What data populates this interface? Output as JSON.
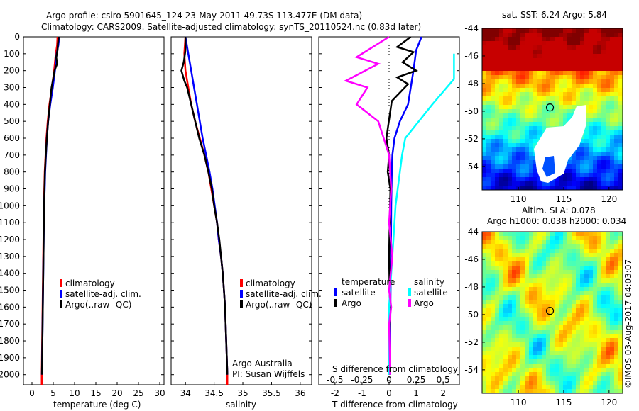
{
  "header": {
    "line1": "Argo profile: csiro 5901645_124 23-May-2011 49.73S 113.477E (DM data)",
    "line2": "Climatology: CARS2009. Satellite-adjusted climatology: synTS_20110524.nc (0.83d later)"
  },
  "colors": {
    "climatology": "#ff0000",
    "satellite": "#0000ff",
    "argo": "#000000",
    "s_satellite": "#00ffff",
    "s_argo": "#ff00ff"
  },
  "credits": {
    "argo_australia": "Argo Australia",
    "pi": "PI: Susan Wijffels",
    "imos": "©IMOS 03-Aug-2017 04:03:07"
  },
  "chart_data": [
    {
      "type": "line",
      "panel": "temperature",
      "xlabel": "temperature (deg C)",
      "x_ticks": [
        "0",
        "5",
        "10",
        "15",
        "20",
        "25",
        "30"
      ],
      "y_ticks": [
        "0",
        "100",
        "200",
        "300",
        "400",
        "500",
        "600",
        "700",
        "800",
        "900",
        "1000",
        "1100",
        "1200",
        "1300",
        "1400",
        "1500",
        "1600",
        "1700",
        "1800",
        "1900",
        "2000"
      ],
      "xlim": [
        -2,
        31
      ],
      "ylim": [
        2060,
        0
      ],
      "legend": [
        "climatology",
        "satellite-adj. clim.",
        "Argo(..raw -QC)"
      ],
      "series": [
        {
          "name": "climatology",
          "color_key": "climatology",
          "points": [
            [
              6.0,
              0
            ],
            [
              5.9,
              50
            ],
            [
              5.6,
              100
            ],
            [
              5.2,
              200
            ],
            [
              4.7,
              300
            ],
            [
              4.1,
              400
            ],
            [
              3.7,
              500
            ],
            [
              3.4,
              600
            ],
            [
              3.2,
              700
            ],
            [
              3.0,
              800
            ],
            [
              2.9,
              900
            ],
            [
              2.8,
              1000
            ],
            [
              2.7,
              1200
            ],
            [
              2.6,
              1400
            ],
            [
              2.5,
              1600
            ],
            [
              2.4,
              1800
            ],
            [
              2.3,
              2000
            ],
            [
              2.3,
              2060
            ]
          ]
        },
        {
          "name": "satellite-adj. clim.",
          "color_key": "satellite",
          "points": [
            [
              6.4,
              0
            ],
            [
              6.2,
              50
            ],
            [
              5.8,
              100
            ],
            [
              5.4,
              200
            ],
            [
              4.9,
              300
            ],
            [
              4.3,
              400
            ],
            [
              3.8,
              500
            ],
            [
              3.5,
              600
            ],
            [
              3.3,
              700
            ],
            [
              3.1,
              800
            ],
            [
              3.0,
              900
            ],
            [
              2.85,
              1000
            ],
            [
              2.75,
              1200
            ],
            [
              2.65,
              1400
            ],
            [
              2.55,
              1600
            ],
            [
              2.45,
              1800
            ],
            [
              2.35,
              2000
            ]
          ]
        },
        {
          "name": "Argo(..raw -QC)",
          "color_key": "argo",
          "points": [
            [
              6.3,
              0
            ],
            [
              6.1,
              40
            ],
            [
              6.0,
              80
            ],
            [
              5.7,
              120
            ],
            [
              5.9,
              160
            ],
            [
              5.3,
              200
            ],
            [
              4.9,
              260
            ],
            [
              4.6,
              300
            ],
            [
              4.2,
              400
            ],
            [
              3.8,
              500
            ],
            [
              3.5,
              600
            ],
            [
              3.25,
              700
            ],
            [
              3.05,
              800
            ],
            [
              2.95,
              900
            ],
            [
              2.85,
              1000
            ],
            [
              2.75,
              1200
            ],
            [
              2.65,
              1400
            ],
            [
              2.55,
              1600
            ],
            [
              2.45,
              1800
            ],
            [
              2.35,
              2000
            ]
          ]
        }
      ]
    },
    {
      "type": "line",
      "panel": "salinity",
      "xlabel": "salinity",
      "x_ticks": [
        "34",
        "34.5",
        "35",
        "35.5",
        "36"
      ],
      "y_ticks": [],
      "xlim": [
        33.75,
        36.2
      ],
      "ylim": [
        2060,
        0
      ],
      "legend": [
        "climatology",
        "satellite-adj. clim.",
        "Argo(..raw -QC)"
      ],
      "series": [
        {
          "name": "climatology",
          "color_key": "climatology",
          "points": [
            [
              34.0,
              0
            ],
            [
              33.98,
              100
            ],
            [
              34.0,
              200
            ],
            [
              34.05,
              300
            ],
            [
              34.1,
              400
            ],
            [
              34.17,
              500
            ],
            [
              34.25,
              600
            ],
            [
              34.33,
              700
            ],
            [
              34.4,
              800
            ],
            [
              34.45,
              900
            ],
            [
              34.5,
              1000
            ],
            [
              34.55,
              1100
            ],
            [
              34.58,
              1200
            ],
            [
              34.62,
              1300
            ],
            [
              34.65,
              1400
            ],
            [
              34.67,
              1500
            ],
            [
              34.69,
              1600
            ],
            [
              34.7,
              1700
            ],
            [
              34.71,
              1800
            ],
            [
              34.72,
              1900
            ],
            [
              34.73,
              2000
            ],
            [
              34.73,
              2060
            ]
          ]
        },
        {
          "name": "satellite-adj. clim.",
          "color_key": "satellite",
          "points": [
            [
              34.0,
              0
            ],
            [
              34.05,
              100
            ],
            [
              34.1,
              200
            ],
            [
              34.15,
              300
            ],
            [
              34.2,
              400
            ],
            [
              34.25,
              500
            ],
            [
              34.3,
              600
            ],
            [
              34.36,
              700
            ],
            [
              34.42,
              800
            ],
            [
              34.47,
              900
            ],
            [
              34.51,
              1000
            ],
            [
              34.55,
              1100
            ],
            [
              34.58,
              1200
            ],
            [
              34.62,
              1300
            ],
            [
              34.65,
              1400
            ],
            [
              34.67,
              1500
            ],
            [
              34.69,
              1600
            ],
            [
              34.7,
              1700
            ],
            [
              34.71,
              1800
            ],
            [
              34.72,
              1900
            ],
            [
              34.73,
              2000
            ]
          ]
        },
        {
          "name": "Argo(..raw -QC)",
          "color_key": "argo",
          "points": [
            [
              34.0,
              0
            ],
            [
              34.0,
              80
            ],
            [
              33.97,
              150
            ],
            [
              33.93,
              200
            ],
            [
              33.98,
              260
            ],
            [
              34.03,
              300
            ],
            [
              34.1,
              400
            ],
            [
              34.17,
              500
            ],
            [
              34.24,
              600
            ],
            [
              34.33,
              700
            ],
            [
              34.4,
              800
            ],
            [
              34.46,
              900
            ],
            [
              34.5,
              1000
            ],
            [
              34.55,
              1100
            ],
            [
              34.59,
              1200
            ],
            [
              34.62,
              1300
            ],
            [
              34.65,
              1400
            ],
            [
              34.67,
              1500
            ],
            [
              34.69,
              1600
            ],
            [
              34.7,
              1700
            ],
            [
              34.71,
              1800
            ],
            [
              34.72,
              1900
            ],
            [
              34.73,
              2000
            ]
          ]
        }
      ]
    },
    {
      "type": "line",
      "panel": "difference",
      "xlabel": "T difference from climatology",
      "xlabel_top": "S difference from climatology",
      "x_ticks": [
        "-2",
        "-1",
        "0",
        "1",
        "2"
      ],
      "x_ticks_s": [
        "-0.5",
        "-0.25",
        "0",
        "0.25",
        "0.5"
      ],
      "y_ticks": [],
      "xlim": [
        -2.6,
        2.6
      ],
      "ylim": [
        2060,
        0
      ],
      "legend_groups": [
        {
          "title": "temperature",
          "items": [
            "satellite",
            "Argo"
          ]
        },
        {
          "title": "salinity",
          "items": [
            "satellite",
            "Argo"
          ]
        }
      ],
      "series": [
        {
          "name": "temperature satellite",
          "color_key": "satellite",
          "points": [
            [
              1.2,
              0
            ],
            [
              1.0,
              80
            ],
            [
              0.9,
              200
            ],
            [
              0.7,
              400
            ],
            [
              0.4,
              500
            ],
            [
              0.2,
              600
            ],
            [
              0.12,
              700
            ],
            [
              0.1,
              800
            ],
            [
              0.08,
              1000
            ],
            [
              0.07,
              1200
            ],
            [
              0.06,
              1400
            ],
            [
              0.05,
              1600
            ],
            [
              0.04,
              1800
            ],
            [
              0.04,
              2000
            ]
          ]
        },
        {
          "name": "temperature Argo",
          "color_key": "argo",
          "points": [
            [
              0.8,
              0
            ],
            [
              0.3,
              60
            ],
            [
              0.9,
              90
            ],
            [
              0.5,
              150
            ],
            [
              1.0,
              200
            ],
            [
              0.3,
              240
            ],
            [
              0.7,
              280
            ],
            [
              0.1,
              380
            ],
            [
              -0.1,
              600
            ],
            [
              0.0,
              700
            ],
            [
              -0.05,
              800
            ],
            [
              0.05,
              900
            ],
            [
              0.02,
              1100
            ],
            [
              0.0,
              1300
            ],
            [
              0.03,
              1600
            ],
            [
              0.0,
              1800
            ],
            [
              0.02,
              2000
            ]
          ]
        },
        {
          "name": "salinity satellite",
          "color_key": "s_satellite",
          "points": [
            [
              0.6,
              100
            ],
            [
              0.6,
              250
            ],
            [
              0.4,
              400
            ],
            [
              0.15,
              600
            ],
            [
              0.12,
              700
            ],
            [
              0.1,
              800
            ],
            [
              0.06,
              1000
            ],
            [
              0.04,
              1200
            ],
            [
              0.02,
              1400
            ],
            [
              0.0,
              1600
            ],
            [
              0.0,
              1800
            ],
            [
              0.0,
              2000
            ]
          ]
        },
        {
          "name": "salinity Argo",
          "color_key": "s_argo",
          "points": [
            [
              0.0,
              0
            ],
            [
              -0.3,
              120
            ],
            [
              -0.1,
              160
            ],
            [
              -0.4,
              260
            ],
            [
              -0.2,
              300
            ],
            [
              -0.3,
              400
            ],
            [
              -0.1,
              500
            ],
            [
              -0.05,
              600
            ],
            [
              0.0,
              700
            ],
            [
              0.02,
              900
            ],
            [
              0.0,
              1100
            ],
            [
              0.03,
              1300
            ],
            [
              0.0,
              1500
            ],
            [
              0.02,
              1600
            ],
            [
              0.0,
              1700
            ],
            [
              0.01,
              2000
            ]
          ]
        }
      ]
    },
    {
      "type": "heatmap",
      "panel": "sst-map",
      "title": "sat. SST: 6.24  Argo: 5.84",
      "x_ticks": [
        "110",
        "115",
        "120"
      ],
      "y_ticks": [
        "-44",
        "-46",
        "-48",
        "-50",
        "-52",
        "-54"
      ],
      "xlim": [
        106,
        121.5
      ],
      "ylim": [
        -55.7,
        -44
      ],
      "marker": {
        "lon": 113.477,
        "lat": -49.73
      }
    },
    {
      "type": "heatmap",
      "panel": "sla-map",
      "title": "Altim. SLA: 0.078",
      "subtitle": "Argo h1000: 0.038 h2000: 0.034",
      "x_ticks": [
        "110",
        "115",
        "120"
      ],
      "y_ticks": [
        "-44",
        "-46",
        "-48",
        "-50",
        "-52",
        "-54"
      ],
      "xlim": [
        106,
        121.5
      ],
      "ylim": [
        -55.7,
        -44
      ],
      "marker": {
        "lon": 113.477,
        "lat": -49.73
      }
    }
  ]
}
